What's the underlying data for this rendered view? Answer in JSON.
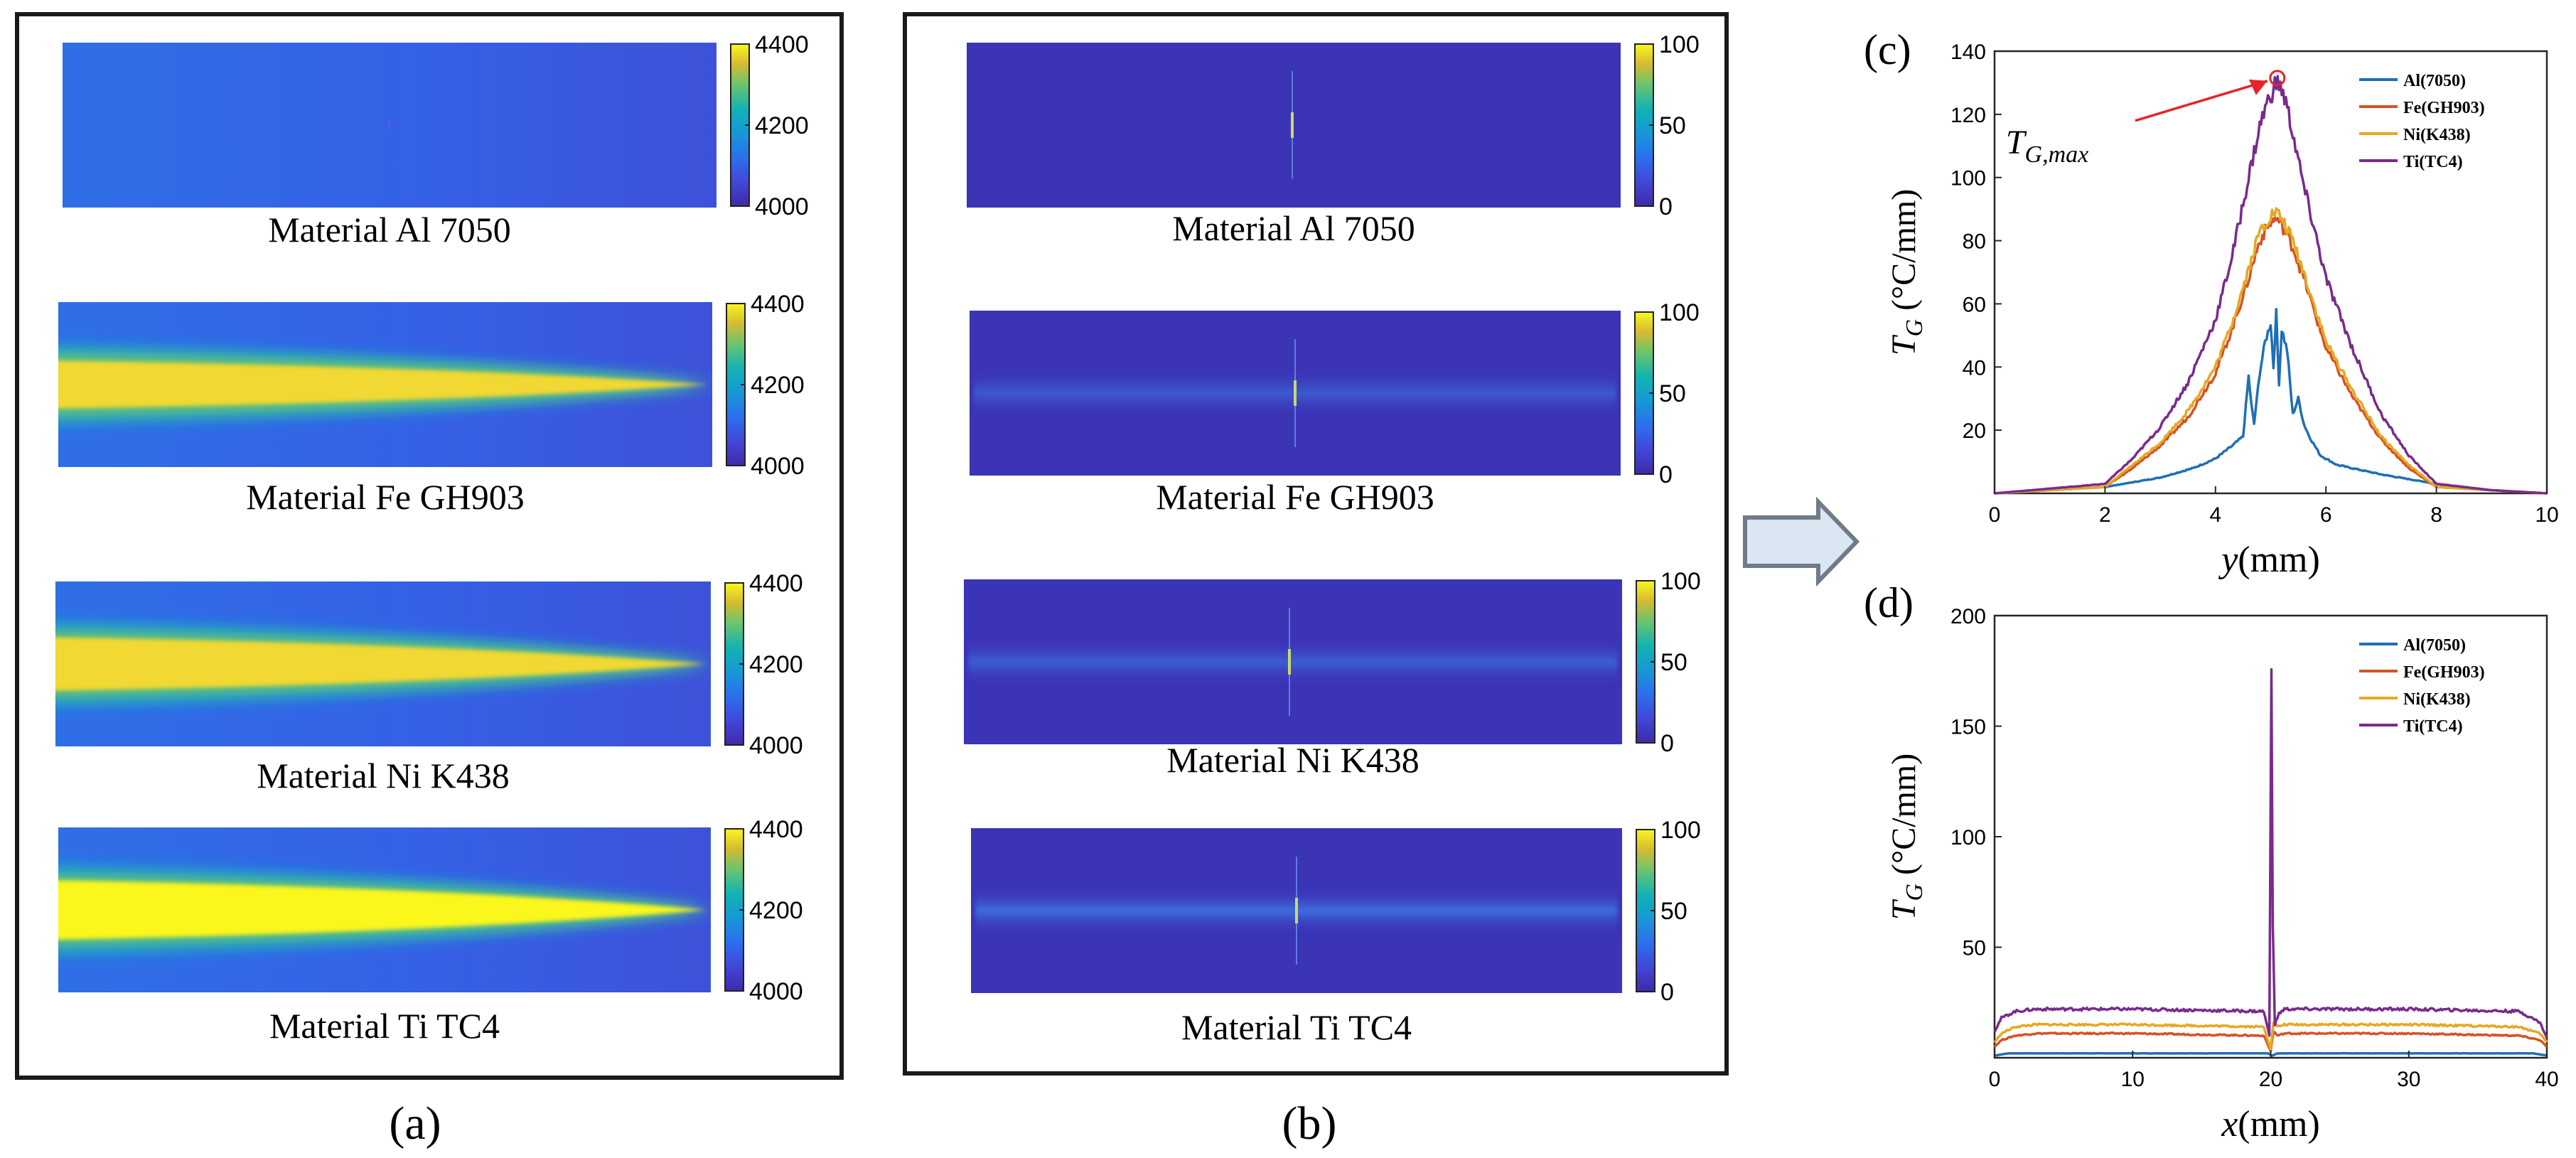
{
  "colors": {
    "al": "#1f6fb5",
    "fe": "#d35327",
    "ni": "#e6a823",
    "ti": "#7a2a8c",
    "marker": "#e8222a",
    "map_low": "#3e2aa8",
    "map_high": "#f7ee20",
    "frame": "#1a1a1a",
    "arrow": "#7d8b99"
  },
  "panel_a": {
    "label": "(a)",
    "colorbar_ticks": [
      "4400",
      "4200",
      "4000"
    ],
    "maps": [
      {
        "caption": "Material Al 7050",
        "plume_intensity": 0.05
      },
      {
        "caption": "Material Fe GH903",
        "plume_intensity": 0.7
      },
      {
        "caption": "Material Ni K438",
        "plume_intensity": 0.85
      },
      {
        "caption": "Material Ti TC4",
        "plume_intensity": 1.0
      }
    ]
  },
  "panel_b": {
    "label": "(b)",
    "colorbar_ticks": [
      "100",
      "50",
      "0"
    ],
    "maps": [
      {
        "caption": "Material Al 7050",
        "band_intensity": 0.0
      },
      {
        "caption": "Material Fe GH903",
        "band_intensity": 0.55
      },
      {
        "caption": "Material Ni K438",
        "band_intensity": 0.6
      },
      {
        "caption": "Material Ti TC4",
        "band_intensity": 0.8
      }
    ]
  },
  "chart_data": [
    {
      "type": "line",
      "panel_label": "(c)",
      "title": "",
      "xlabel_symbol": "y",
      "xlabel_unit": "(mm)",
      "ylabel_symbol": "T",
      "ylabel_sub": "G",
      "ylabel_unit": "(°C/mm)",
      "xlim": [
        0,
        10
      ],
      "ylim": [
        0,
        140
      ],
      "xticks": [
        0,
        2,
        4,
        6,
        8,
        10
      ],
      "yticks": [
        20,
        40,
        60,
        80,
        100,
        120,
        140
      ],
      "legend": "top-right",
      "annotation": {
        "symbol": "T",
        "sub": "G,max",
        "x": 5.12,
        "y": 131.5
      },
      "series": [
        {
          "name": "Al(7050)",
          "key": "al",
          "x": [
            0,
            2,
            3,
            3.6,
            4.0,
            4.3,
            4.5,
            4.6,
            4.65,
            4.7,
            4.8,
            4.9,
            5.0,
            5.05,
            5.1,
            5.15,
            5.2,
            5.3,
            5.4,
            5.5,
            5.6,
            5.7,
            5.9,
            6.2,
            7,
            8,
            9,
            10
          ],
          "y": [
            0,
            2,
            5,
            8,
            11,
            15,
            18,
            37,
            28,
            22,
            38,
            48,
            54,
            40,
            57,
            35,
            52,
            45,
            25,
            30,
            22,
            18,
            12,
            9,
            6,
            3,
            1,
            0
          ]
        },
        {
          "name": "Fe(GH903)",
          "key": "fe",
          "x": [
            0,
            2,
            2.5,
            3,
            3.5,
            4,
            4.3,
            4.6,
            4.8,
            5.0,
            5.1,
            5.2,
            5.4,
            5.6,
            5.8,
            6.0,
            6.5,
            7,
            7.5,
            8,
            9,
            10
          ],
          "y": [
            0,
            2,
            8,
            15,
            24,
            38,
            52,
            68,
            80,
            86,
            87,
            85,
            78,
            68,
            57,
            46,
            30,
            17,
            8,
            2,
            1,
            0
          ]
        },
        {
          "name": "Ni(K438)",
          "key": "ni",
          "x": [
            0,
            2,
            2.5,
            3,
            3.5,
            4,
            4.3,
            4.6,
            4.8,
            5.0,
            5.1,
            5.2,
            5.4,
            5.6,
            5.8,
            6.0,
            6.5,
            7,
            7.5,
            8,
            9,
            10
          ],
          "y": [
            0,
            2,
            9,
            16,
            26,
            40,
            54,
            71,
            83,
            88,
            89,
            87,
            80,
            70,
            59,
            48,
            32,
            18,
            9,
            2,
            1,
            0
          ]
        },
        {
          "name": "Ti(TC4)",
          "key": "ti",
          "x": [
            0,
            2,
            2.5,
            3,
            3.5,
            4,
            4.3,
            4.6,
            4.8,
            4.9,
            5.0,
            5.1,
            5.2,
            5.3,
            5.4,
            5.6,
            5.8,
            6.0,
            6.5,
            7,
            7.5,
            8,
            9,
            10
          ],
          "y": [
            0,
            3,
            11,
            21,
            35,
            55,
            75,
            100,
            116,
            122,
            126,
            130,
            128,
            122,
            114,
            97,
            83,
            68,
            45,
            25,
            12,
            3,
            1,
            0
          ]
        }
      ]
    },
    {
      "type": "line",
      "panel_label": "(d)",
      "title": "",
      "xlabel_symbol": "x",
      "xlabel_unit": "(mm)",
      "ylabel_symbol": "T",
      "ylabel_sub": "G",
      "ylabel_unit": "(°C/mm)",
      "xlim": [
        0,
        40
      ],
      "ylim": [
        0,
        200
      ],
      "xticks": [
        0,
        10,
        20,
        30,
        40
      ],
      "yticks": [
        50,
        100,
        150,
        200
      ],
      "legend": "top-right",
      "series": [
        {
          "name": "Al(7050)",
          "key": "al",
          "x": [
            0,
            1,
            19.8,
            20.1,
            20.5,
            39,
            40
          ],
          "y": [
            1,
            2,
            2,
            1,
            2,
            2,
            1
          ]
        },
        {
          "name": "Fe(GH903)",
          "key": "fe",
          "x": [
            0,
            0.5,
            1.5,
            3,
            10,
            19.5,
            20.0,
            20.2,
            20.5,
            21.0,
            30,
            38,
            39.5,
            40
          ],
          "y": [
            5,
            8,
            10,
            11,
            11,
            10,
            3,
            12,
            10,
            11,
            11,
            10,
            8,
            5
          ]
        },
        {
          "name": "Ni(K438)",
          "key": "ni",
          "x": [
            0,
            0.5,
            1.5,
            3,
            10,
            19.5,
            20.0,
            20.2,
            20.5,
            21.0,
            30,
            38,
            39.5,
            40
          ],
          "y": [
            7,
            11,
            14,
            15,
            15,
            14,
            4,
            16,
            14,
            15,
            15,
            14,
            11,
            7
          ]
        },
        {
          "name": "Ti(TC4)",
          "key": "ti",
          "x": [
            0,
            0.5,
            1.5,
            3,
            10,
            19.5,
            19.9,
            20.05,
            20.15,
            20.3,
            20.6,
            21.0,
            30,
            38,
            39.5,
            40
          ],
          "y": [
            12,
            18,
            21,
            22,
            22,
            21,
            10,
            181,
            60,
            15,
            20,
            22,
            22,
            21,
            16,
            9
          ]
        }
      ]
    }
  ]
}
